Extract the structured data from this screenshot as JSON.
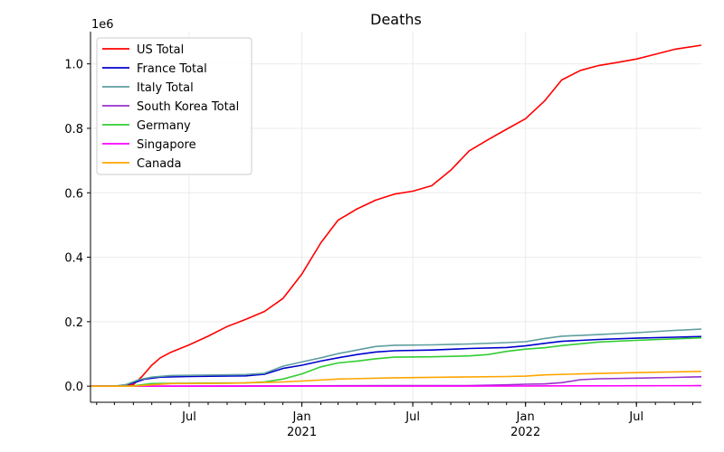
{
  "chart_data": {
    "type": "line",
    "title": "Deaths",
    "xlabel": "",
    "ylabel": "",
    "y_offset_text": "1e6",
    "x_range": [
      "2020-01-22",
      "2022-10-15"
    ],
    "ylim": [
      -0.05,
      1.1
    ],
    "grid": true,
    "legend_position": "top-left",
    "x_ticks": [
      {
        "date": "2020-07-01",
        "label": "Jul",
        "label2": ""
      },
      {
        "date": "2021-01-01",
        "label": "Jan",
        "label2": "2021"
      },
      {
        "date": "2021-07-01",
        "label": "Jul",
        "label2": ""
      },
      {
        "date": "2022-01-01",
        "label": "Jan",
        "label2": "2022"
      },
      {
        "date": "2022-07-01",
        "label": "Jul",
        "label2": ""
      }
    ],
    "y_ticks": [
      0.0,
      0.2,
      0.4,
      0.6,
      0.8,
      1.0
    ],
    "y_tick_labels": [
      "0.0",
      "0.2",
      "0.4",
      "0.6",
      "0.8",
      "1.0"
    ],
    "series": [
      {
        "name": "US Total",
        "color": "#ff0000",
        "points": [
          [
            "2020-01-22",
            0.0
          ],
          [
            "2020-03-01",
            0.0
          ],
          [
            "2020-03-15",
            0.0
          ],
          [
            "2020-04-01",
            0.005
          ],
          [
            "2020-04-15",
            0.03
          ],
          [
            "2020-05-01",
            0.065
          ],
          [
            "2020-05-15",
            0.088
          ],
          [
            "2020-06-01",
            0.105
          ],
          [
            "2020-07-01",
            0.128
          ],
          [
            "2020-08-01",
            0.155
          ],
          [
            "2020-09-01",
            0.185
          ],
          [
            "2020-10-01",
            0.207
          ],
          [
            "2020-11-01",
            0.232
          ],
          [
            "2020-12-01",
            0.272
          ],
          [
            "2021-01-01",
            0.348
          ],
          [
            "2021-02-01",
            0.445
          ],
          [
            "2021-03-01",
            0.515
          ],
          [
            "2021-04-01",
            0.55
          ],
          [
            "2021-05-01",
            0.577
          ],
          [
            "2021-06-01",
            0.596
          ],
          [
            "2021-07-01",
            0.605
          ],
          [
            "2021-08-01",
            0.622
          ],
          [
            "2021-09-01",
            0.67
          ],
          [
            "2021-10-01",
            0.73
          ],
          [
            "2021-11-01",
            0.765
          ],
          [
            "2021-12-01",
            0.797
          ],
          [
            "2022-01-01",
            0.83
          ],
          [
            "2022-02-01",
            0.885
          ],
          [
            "2022-03-01",
            0.95
          ],
          [
            "2022-04-01",
            0.98
          ],
          [
            "2022-05-01",
            0.995
          ],
          [
            "2022-06-01",
            1.005
          ],
          [
            "2022-07-01",
            1.015
          ],
          [
            "2022-08-01",
            1.03
          ],
          [
            "2022-09-01",
            1.045
          ],
          [
            "2022-10-15",
            1.058
          ]
        ]
      },
      {
        "name": "France Total",
        "color": "#0000cd",
        "points": [
          [
            "2020-01-22",
            0.0
          ],
          [
            "2020-03-10",
            0.0
          ],
          [
            "2020-04-01",
            0.01
          ],
          [
            "2020-04-20",
            0.022
          ],
          [
            "2020-05-15",
            0.028
          ],
          [
            "2020-07-01",
            0.03
          ],
          [
            "2020-10-01",
            0.032
          ],
          [
            "2020-11-01",
            0.037
          ],
          [
            "2020-12-01",
            0.055
          ],
          [
            "2021-01-01",
            0.065
          ],
          [
            "2021-02-01",
            0.078
          ],
          [
            "2021-03-01",
            0.088
          ],
          [
            "2021-04-01",
            0.098
          ],
          [
            "2021-05-01",
            0.106
          ],
          [
            "2021-06-01",
            0.11
          ],
          [
            "2021-08-01",
            0.112
          ],
          [
            "2021-10-01",
            0.117
          ],
          [
            "2021-12-01",
            0.12
          ],
          [
            "2022-01-01",
            0.125
          ],
          [
            "2022-02-01",
            0.133
          ],
          [
            "2022-03-01",
            0.139
          ],
          [
            "2022-05-01",
            0.145
          ],
          [
            "2022-07-01",
            0.149
          ],
          [
            "2022-09-01",
            0.152
          ],
          [
            "2022-10-15",
            0.154
          ]
        ]
      },
      {
        "name": "Italy Total",
        "color": "#5f9ea0",
        "points": [
          [
            "2020-01-22",
            0.0
          ],
          [
            "2020-03-01",
            0.0
          ],
          [
            "2020-03-20",
            0.005
          ],
          [
            "2020-04-10",
            0.02
          ],
          [
            "2020-05-01",
            0.028
          ],
          [
            "2020-06-01",
            0.033
          ],
          [
            "2020-10-01",
            0.036
          ],
          [
            "2020-11-01",
            0.04
          ],
          [
            "2020-12-01",
            0.062
          ],
          [
            "2021-01-01",
            0.075
          ],
          [
            "2021-02-01",
            0.088
          ],
          [
            "2021-03-01",
            0.101
          ],
          [
            "2021-04-01",
            0.112
          ],
          [
            "2021-05-01",
            0.123
          ],
          [
            "2021-06-01",
            0.127
          ],
          [
            "2021-08-01",
            0.128
          ],
          [
            "2021-10-01",
            0.131
          ],
          [
            "2021-12-01",
            0.135
          ],
          [
            "2022-01-01",
            0.138
          ],
          [
            "2022-02-01",
            0.148
          ],
          [
            "2022-03-01",
            0.155
          ],
          [
            "2022-05-01",
            0.16
          ],
          [
            "2022-07-01",
            0.166
          ],
          [
            "2022-09-01",
            0.173
          ],
          [
            "2022-10-15",
            0.177
          ]
        ]
      },
      {
        "name": "South Korea Total",
        "color": "#9932cc",
        "points": [
          [
            "2020-01-22",
            0.0
          ],
          [
            "2021-01-01",
            0.001
          ],
          [
            "2021-06-01",
            0.002
          ],
          [
            "2021-10-01",
            0.002
          ],
          [
            "2021-12-01",
            0.004
          ],
          [
            "2022-01-01",
            0.006
          ],
          [
            "2022-02-01",
            0.007
          ],
          [
            "2022-03-01",
            0.011
          ],
          [
            "2022-04-01",
            0.02
          ],
          [
            "2022-05-01",
            0.023
          ],
          [
            "2022-07-01",
            0.025
          ],
          [
            "2022-09-01",
            0.027
          ],
          [
            "2022-10-15",
            0.029
          ]
        ]
      },
      {
        "name": "Germany",
        "color": "#32cd32",
        "points": [
          [
            "2020-01-22",
            0.0
          ],
          [
            "2020-04-01",
            0.001
          ],
          [
            "2020-05-01",
            0.008
          ],
          [
            "2020-06-01",
            0.009
          ],
          [
            "2020-10-01",
            0.01
          ],
          [
            "2020-11-01",
            0.013
          ],
          [
            "2020-12-01",
            0.022
          ],
          [
            "2021-01-01",
            0.038
          ],
          [
            "2021-02-01",
            0.06
          ],
          [
            "2021-03-01",
            0.072
          ],
          [
            "2021-04-01",
            0.078
          ],
          [
            "2021-05-01",
            0.085
          ],
          [
            "2021-06-01",
            0.09
          ],
          [
            "2021-08-01",
            0.091
          ],
          [
            "2021-10-01",
            0.094
          ],
          [
            "2021-11-01",
            0.098
          ],
          [
            "2021-12-01",
            0.108
          ],
          [
            "2022-01-01",
            0.115
          ],
          [
            "2022-02-01",
            0.119
          ],
          [
            "2022-03-01",
            0.126
          ],
          [
            "2022-05-01",
            0.137
          ],
          [
            "2022-07-01",
            0.142
          ],
          [
            "2022-09-01",
            0.147
          ],
          [
            "2022-10-15",
            0.15
          ]
        ]
      },
      {
        "name": "Singapore",
        "color": "#ff00ff",
        "points": [
          [
            "2020-01-22",
            0.0
          ],
          [
            "2021-09-01",
            0.0002
          ],
          [
            "2022-01-01",
            0.0008
          ],
          [
            "2022-10-15",
            0.0016
          ]
        ]
      },
      {
        "name": "Canada",
        "color": "#ffa500",
        "points": [
          [
            "2020-01-22",
            0.0
          ],
          [
            "2020-04-01",
            0.0
          ],
          [
            "2020-05-01",
            0.004
          ],
          [
            "2020-06-01",
            0.008
          ],
          [
            "2020-09-01",
            0.009
          ],
          [
            "2020-12-01",
            0.013
          ],
          [
            "2021-01-01",
            0.016
          ],
          [
            "2021-03-01",
            0.022
          ],
          [
            "2021-06-01",
            0.026
          ],
          [
            "2021-12-01",
            0.03
          ],
          [
            "2022-01-01",
            0.031
          ],
          [
            "2022-02-01",
            0.035
          ],
          [
            "2022-04-01",
            0.038
          ],
          [
            "2022-07-01",
            0.042
          ],
          [
            "2022-10-15",
            0.046
          ]
        ]
      }
    ]
  }
}
